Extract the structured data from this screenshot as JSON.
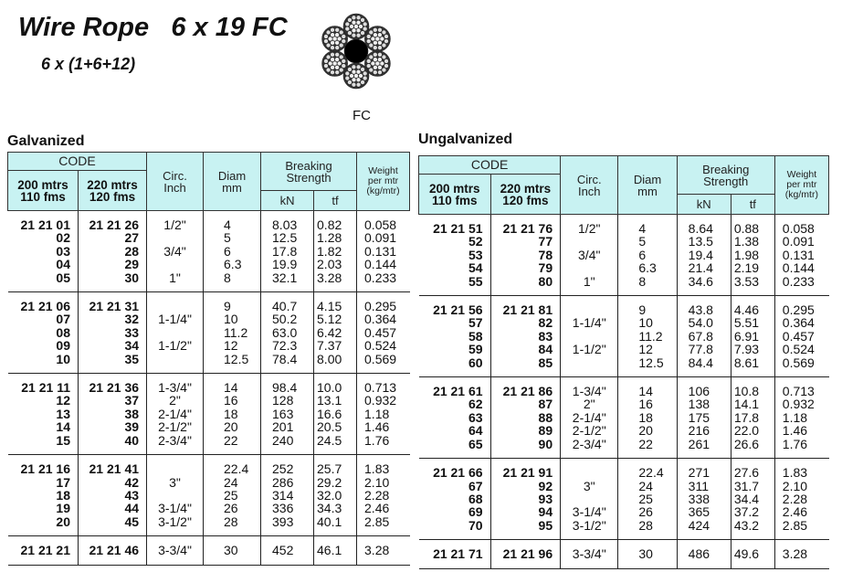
{
  "title": "Wire Rope   6 x 19 FC",
  "subtitle": "6 x (1+6+12)",
  "core_label": "FC",
  "colors": {
    "header_bg": "#c8f2f2"
  },
  "headers": {
    "code": "CODE",
    "c200": "200 mtrs\n110 fms",
    "c220": "220 mtrs\n120 fms",
    "circ": "Circ.\nInch",
    "diam": "Diam\nmm",
    "breaking": "Breaking\nStrength",
    "kn": "kN",
    "tf": "tf",
    "weight": "Weight\nper mtr\n(kg/mtr)"
  },
  "tables": [
    {
      "label": "Galvanized",
      "groups": [
        [
          [
            "21 21 01",
            "21 21 26",
            "1/2\"",
            "4",
            "8.03",
            "0.82",
            "0.058"
          ],
          [
            "02",
            "27",
            "",
            "5",
            "12.5",
            "1.28",
            "0.091"
          ],
          [
            "03",
            "28",
            "3/4\"",
            "6",
            "17.8",
            "1.82",
            "0.131"
          ],
          [
            "04",
            "29",
            "",
            "6.3",
            "19.9",
            "2.03",
            "0.144"
          ],
          [
            "05",
            "30",
            "1\"",
            "8",
            "32.1",
            "3.28",
            "0.233"
          ]
        ],
        [
          [
            "21 21 06",
            "21 21 31",
            "",
            "9",
            "40.7",
            "4.15",
            "0.295"
          ],
          [
            "07",
            "32",
            "1-1/4\"",
            "10",
            "50.2",
            "5.12",
            "0.364"
          ],
          [
            "08",
            "33",
            "",
            "11.2",
            "63.0",
            "6.42",
            "0.457"
          ],
          [
            "09",
            "34",
            "1-1/2\"",
            "12",
            "72.3",
            "7.37",
            "0.524"
          ],
          [
            "10",
            "35",
            "",
            "12.5",
            "78.4",
            "8.00",
            "0.569"
          ]
        ],
        [
          [
            "21 21 11",
            "21 21 36",
            "1-3/4\"",
            "14",
            "98.4",
            "10.0",
            "0.713"
          ],
          [
            "12",
            "37",
            "2\"",
            "16",
            "128",
            "13.1",
            "0.932"
          ],
          [
            "13",
            "38",
            "2-1/4\"",
            "18",
            "163",
            "16.6",
            "1.18"
          ],
          [
            "14",
            "39",
            "2-1/2\"",
            "20",
            "201",
            "20.5",
            "1.46"
          ],
          [
            "15",
            "40",
            "2-3/4\"",
            "22",
            "240",
            "24.5",
            "1.76"
          ]
        ],
        [
          [
            "21 21 16",
            "21 21 41",
            "",
            "22.4",
            "252",
            "25.7",
            "1.83"
          ],
          [
            "17",
            "42",
            "3\"",
            "24",
            "286",
            "29.2",
            "2.10"
          ],
          [
            "18",
            "43",
            "",
            "25",
            "314",
            "32.0",
            "2.28"
          ],
          [
            "19",
            "44",
            "3-1/4\"",
            "26",
            "336",
            "34.3",
            "2.46"
          ],
          [
            "20",
            "45",
            "3-1/2\"",
            "28",
            "393",
            "40.1",
            "2.85"
          ]
        ],
        [
          [
            "21 21 21",
            "21 21 46",
            "3-3/4\"",
            "30",
            "452",
            "46.1",
            "3.28"
          ]
        ]
      ]
    },
    {
      "label": "Ungalvanized",
      "groups": [
        [
          [
            "21 21 51",
            "21 21 76",
            "1/2\"",
            "4",
            "8.64",
            "0.88",
            "0.058"
          ],
          [
            "52",
            "77",
            "",
            "5",
            "13.5",
            "1.38",
            "0.091"
          ],
          [
            "53",
            "78",
            "3/4\"",
            "6",
            "19.4",
            "1.98",
            "0.131"
          ],
          [
            "54",
            "79",
            "",
            "6.3",
            "21.4",
            "2.19",
            "0.144"
          ],
          [
            "55",
            "80",
            "1\"",
            "8",
            "34.6",
            "3.53",
            "0.233"
          ]
        ],
        [
          [
            "21 21 56",
            "21 21 81",
            "",
            "9",
            "43.8",
            "4.46",
            "0.295"
          ],
          [
            "57",
            "82",
            "1-1/4\"",
            "10",
            "54.0",
            "5.51",
            "0.364"
          ],
          [
            "58",
            "83",
            "",
            "11.2",
            "67.8",
            "6.91",
            "0.457"
          ],
          [
            "59",
            "84",
            "1-1/2\"",
            "12",
            "77.8",
            "7.93",
            "0.524"
          ],
          [
            "60",
            "85",
            "",
            "12.5",
            "84.4",
            "8.61",
            "0.569"
          ]
        ],
        [
          [
            "21 21 61",
            "21 21 86",
            "1-3/4\"",
            "14",
            "106",
            "10.8",
            "0.713"
          ],
          [
            "62",
            "87",
            "2\"",
            "16",
            "138",
            "14.1",
            "0.932"
          ],
          [
            "63",
            "88",
            "2-1/4\"",
            "18",
            "175",
            "17.8",
            "1.18"
          ],
          [
            "64",
            "89",
            "2-1/2\"",
            "20",
            "216",
            "22.0",
            "1.46"
          ],
          [
            "65",
            "90",
            "2-3/4\"",
            "22",
            "261",
            "26.6",
            "1.76"
          ]
        ],
        [
          [
            "21 21 66",
            "21 21 91",
            "",
            "22.4",
            "271",
            "27.6",
            "1.83"
          ],
          [
            "67",
            "92",
            "3\"",
            "24",
            "311",
            "31.7",
            "2.10"
          ],
          [
            "68",
            "93",
            "",
            "25",
            "338",
            "34.4",
            "2.28"
          ],
          [
            "69",
            "94",
            "3-1/4\"",
            "26",
            "365",
            "37.2",
            "2.46"
          ],
          [
            "70",
            "95",
            "3-1/2\"",
            "28",
            "424",
            "43.2",
            "2.85"
          ]
        ],
        [
          [
            "21 21 71",
            "21 21 96",
            "3-3/4\"",
            "30",
            "486",
            "49.6",
            "3.28"
          ]
        ]
      ]
    }
  ]
}
